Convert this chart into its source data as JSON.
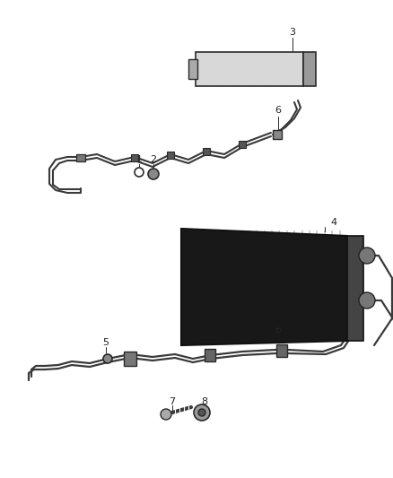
{
  "background_color": "#ffffff",
  "fig_width": 4.38,
  "fig_height": 5.33,
  "dpi": 100,
  "line_color": "#2a2a2a",
  "pipe_color": "#3a3a3a",
  "dark_fill": "#1a1a1a",
  "mid_fill": "#555555",
  "light_fill": "#cccccc",
  "grid_dark": "#333333",
  "grid_light": "#777777"
}
